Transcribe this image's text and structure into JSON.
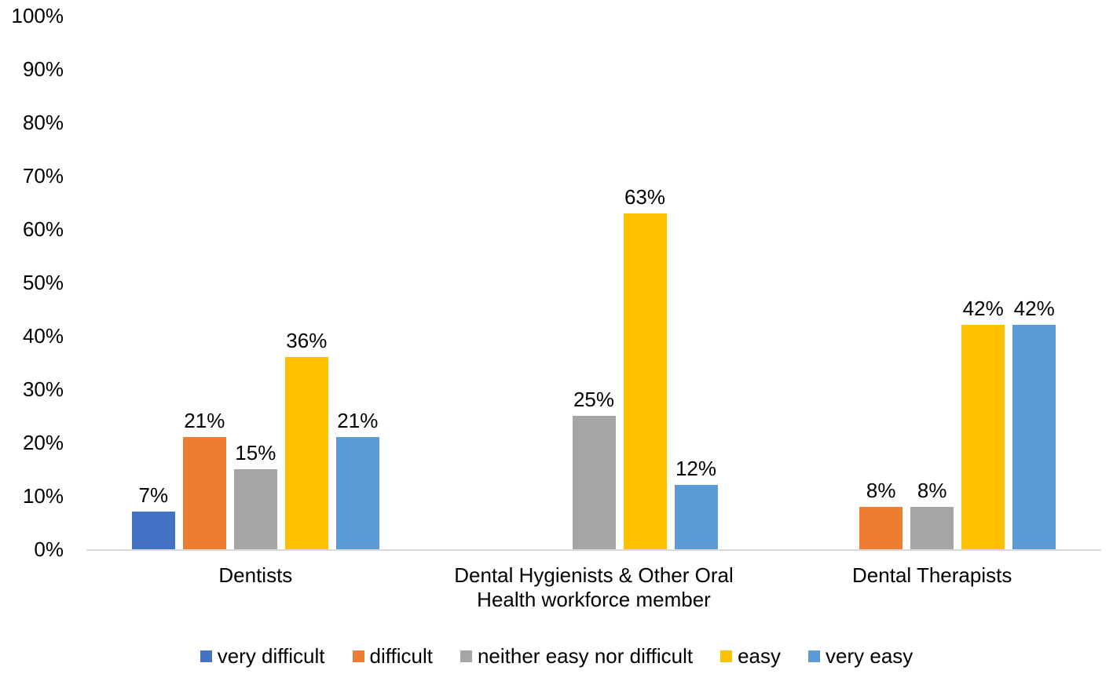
{
  "chart_data": {
    "type": "bar",
    "title": "",
    "xlabel": "",
    "ylabel": "",
    "categories": [
      "Dentists",
      "Dental Hygienists & Other Oral Health workforce member",
      "Dental Therapists"
    ],
    "series": [
      {
        "name": "very difficult",
        "color": "#4472C4",
        "values": [
          7,
          0,
          0
        ]
      },
      {
        "name": "difficult",
        "color": "#ED7D31",
        "values": [
          21,
          0,
          8
        ]
      },
      {
        "name": "neither easy nor difficult",
        "color": "#A5A5A5",
        "values": [
          15,
          25,
          8
        ]
      },
      {
        "name": "easy",
        "color": "#FFC000",
        "values": [
          36,
          63,
          42
        ]
      },
      {
        "name": "very easy",
        "color": "#5B9BD5",
        "values": [
          21,
          12,
          42
        ]
      }
    ],
    "data_labels": {
      "shown": true,
      "suffix": "%",
      "values_text": [
        [
          "7%",
          "",
          ""
        ],
        [
          "21%",
          "",
          "8%"
        ],
        [
          "15%",
          "25%",
          "8%"
        ],
        [
          "36%",
          "63%",
          "42%"
        ],
        [
          "21%",
          "12%",
          "42%"
        ]
      ]
    },
    "ylim": [
      0,
      100
    ],
    "ytick_step": 10,
    "ytick_labels": [
      "0%",
      "10%",
      "20%",
      "30%",
      "40%",
      "50%",
      "60%",
      "70%",
      "80%",
      "90%",
      "100%"
    ],
    "grid": "off",
    "axis_line_color": "#D9D9D9",
    "text_color": "#000000",
    "legend_position": "bottom",
    "legend_labels": [
      "very difficult",
      "difficult",
      "neither easy nor difficult",
      "easy",
      "very easy"
    ]
  }
}
